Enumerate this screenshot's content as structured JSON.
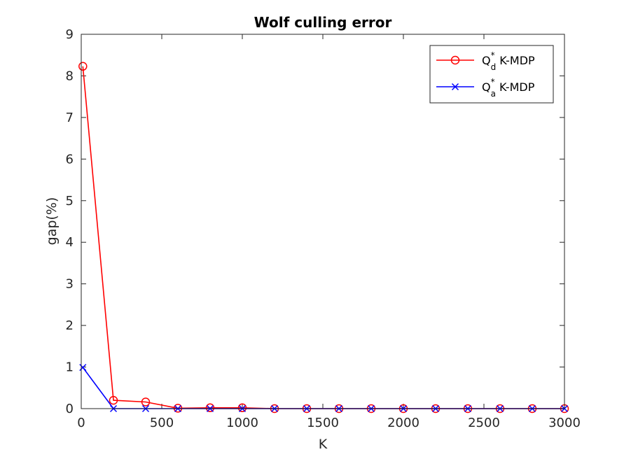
{
  "chart_data": {
    "type": "line",
    "title": "Wolf culling error",
    "xlabel": "K",
    "ylabel": "gap(%)",
    "xlim": [
      0,
      3000
    ],
    "ylim": [
      0,
      9
    ],
    "xticks": [
      0,
      500,
      1000,
      1500,
      2000,
      2500,
      3000
    ],
    "yticks": [
      0,
      1,
      2,
      3,
      4,
      5,
      6,
      7,
      8,
      9
    ],
    "grid": false,
    "legend_position": "top-right",
    "series": [
      {
        "name": "Q_d^* K-MDP",
        "legend_base": "Q",
        "legend_sub": "d",
        "legend_sup": "*",
        "legend_rest": " K-MDP",
        "color": "#ff0000",
        "marker": "circle",
        "x": [
          10,
          200,
          400,
          600,
          800,
          1000,
          1200,
          1400,
          1600,
          1800,
          2000,
          2200,
          2400,
          2600,
          2800,
          3000
        ],
        "y": [
          8.23,
          0.2,
          0.16,
          0.01,
          0.02,
          0.02,
          0.0,
          0.0,
          0.0,
          0.0,
          0.0,
          0.0,
          0.0,
          0.0,
          0.0,
          0.0
        ]
      },
      {
        "name": "Q_a^* K-MDP",
        "legend_base": "Q",
        "legend_sub": "a",
        "legend_sup": "*",
        "legend_rest": " K-MDP",
        "color": "#0000ff",
        "marker": "x",
        "x": [
          10,
          200,
          400,
          600,
          800,
          1000,
          1200,
          1400,
          1600,
          1800,
          2000,
          2200,
          2400,
          2600,
          2800,
          3000
        ],
        "y": [
          0.99,
          0.0,
          0.0,
          0.0,
          0.0,
          0.0,
          0.0,
          0.0,
          0.0,
          0.0,
          0.0,
          0.0,
          0.0,
          0.0,
          0.0,
          0.0
        ]
      }
    ]
  }
}
